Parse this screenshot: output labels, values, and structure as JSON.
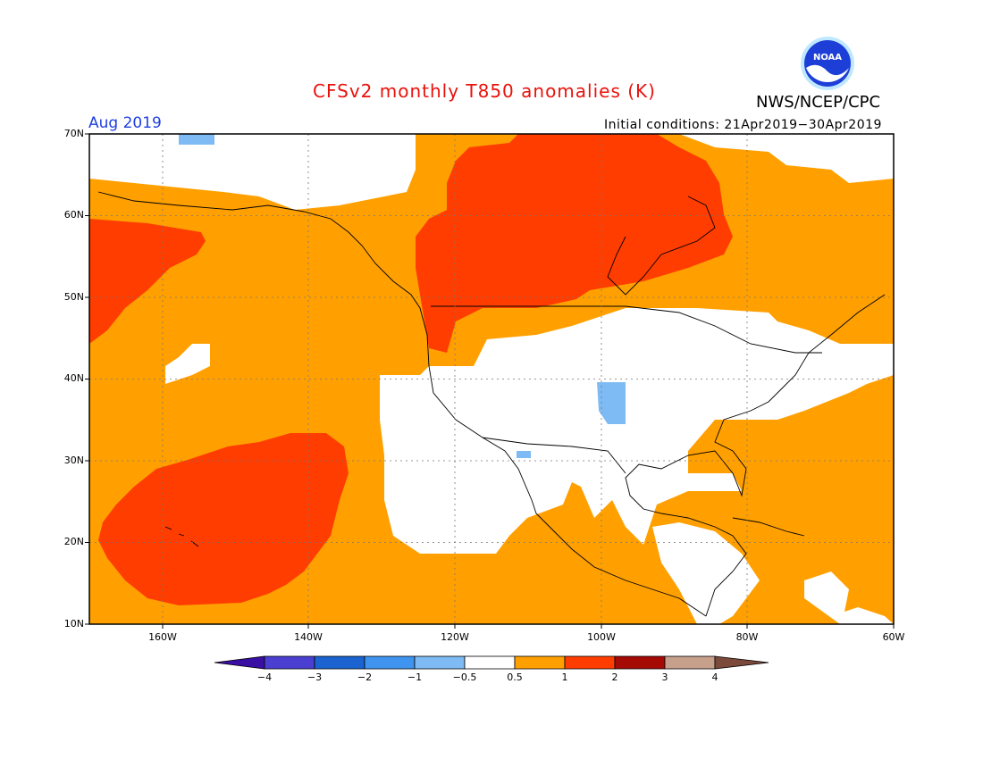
{
  "header": {
    "title": "CFSv2 monthly T850 anomalies (K)",
    "agency": "NWS/NCEP/CPC",
    "month": "Aug 2019",
    "initial_conditions": "Initial conditions: 21Apr2019−30Apr2019",
    "logo_text": "NOAA"
  },
  "axes": {
    "lat_labels": [
      "70N",
      "60N",
      "50N",
      "40N",
      "30N",
      "20N",
      "10N"
    ],
    "lon_labels": [
      "160W",
      "140W",
      "120W",
      "100W",
      "80W",
      "60W"
    ]
  },
  "colorbar": {
    "labels": [
      "−4",
      "−3",
      "−2",
      "−1",
      "−0.5",
      "0.5",
      "1",
      "2",
      "3",
      "4"
    ],
    "colors": [
      "#3a0fa3",
      "#4a3fd0",
      "#1a63d0",
      "#3f94ef",
      "#7ebbf5",
      "#ffffff",
      "#ffa000",
      "#ff3d00",
      "#a50a05",
      "#c7a08c",
      "#7b4a3a"
    ]
  },
  "legend_values": {
    "bins": [
      "< -4",
      "-4 to -3",
      "-3 to -2",
      "-2 to -1",
      "-1 to -0.5",
      "-0.5 to 0.5",
      "0.5 to 1",
      "1 to 2",
      "2 to 3",
      "3 to 4",
      "> 4"
    ]
  },
  "map": {
    "extent": {
      "lon_min": -170,
      "lon_max": -60,
      "lat_min": 10,
      "lat_max": 70
    },
    "colors": {
      "neutral": "#ffffff",
      "warm1": "#ffa000",
      "warm2": "#ff3d00",
      "cool1": "#7ebbf5"
    }
  }
}
